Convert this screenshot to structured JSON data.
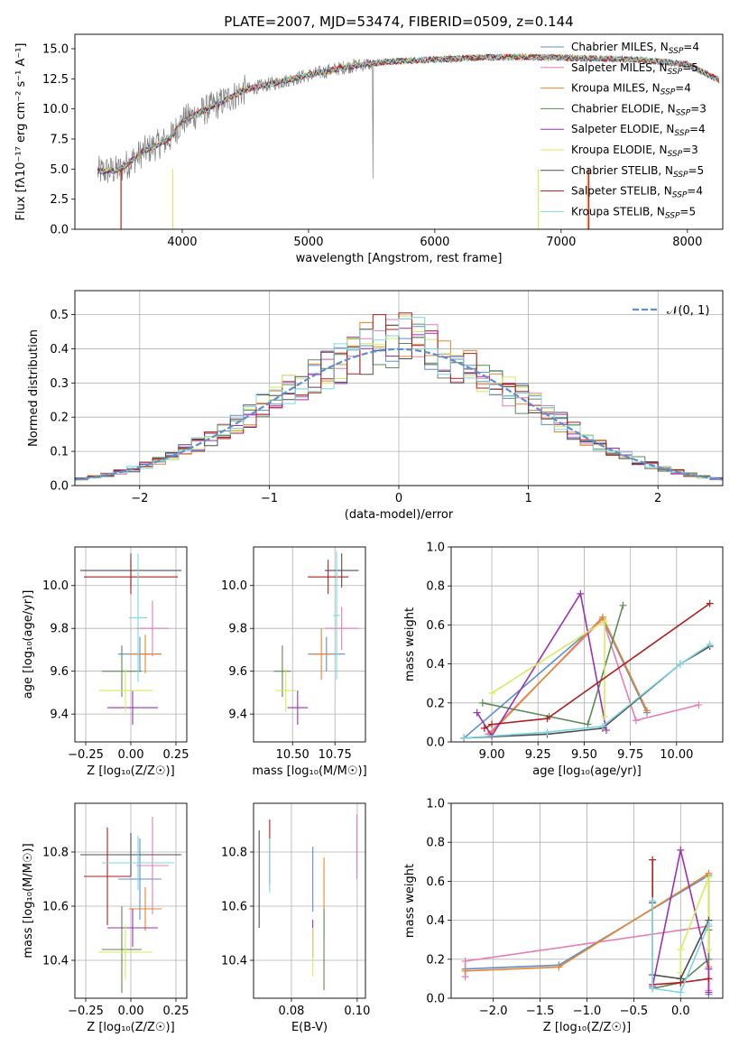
{
  "chart_data": [
    {
      "id": "spectrum",
      "type": "line",
      "title": "PLATE=2007, MJD=53474, FIBERID=0509, z=0.144",
      "xlabel": "wavelength [Angstrom, rest frame]",
      "ylabel": "Flux [fλ10⁻¹⁷ erg cm⁻² s⁻¹ A⁻¹]",
      "xlim": [
        3150,
        8280
      ],
      "ylim": [
        0,
        16.2
      ],
      "xticks": [
        4000,
        5000,
        6000,
        7000,
        8000
      ],
      "yticks": [
        0.0,
        2.5,
        5.0,
        7.5,
        10.0,
        12.5,
        15.0
      ],
      "grid": false,
      "legend_position": "top-right",
      "continuum": {
        "x": [
          3330,
          3500,
          3700,
          3900,
          4000,
          4300,
          4500,
          4800,
          5000,
          5300,
          5600,
          6000,
          6400,
          6800,
          7200,
          7600,
          8000,
          8250
        ],
        "y": [
          4.8,
          4.9,
          6.5,
          7.5,
          9.0,
          10.5,
          11.6,
          12.3,
          12.8,
          13.5,
          13.9,
          14.1,
          14.3,
          14.3,
          14.2,
          14.1,
          13.7,
          12.4
        ]
      },
      "series": [
        {
          "name": "Chabrier MILES, N<sub>SSP</sub>=4",
          "label_main": "Chabrier MILES, N",
          "label_sub": "SSP",
          "label_tail": "=4",
          "color": "#5b8fd0"
        },
        {
          "name": "Salpeter MILES, N<sub>SSP</sub>=5",
          "label_main": "Salpeter MILES, N",
          "label_sub": "SSP",
          "label_tail": "=5",
          "color": "#e47eb4"
        },
        {
          "name": "Kroupa MILES, N<sub>SSP</sub>=4",
          "label_main": "Kroupa MILES, N",
          "label_sub": "SSP",
          "label_tail": "=4",
          "color": "#e7862e"
        },
        {
          "name": "Chabrier ELODIE, N<sub>SSP</sub>=3",
          "label_main": "Chabrier ELODIE, N",
          "label_sub": "SSP",
          "label_tail": "=3",
          "color": "#5d8a56"
        },
        {
          "name": "Salpeter ELODIE, N<sub>SSP</sub>=4",
          "label_main": "Salpeter ELODIE, N",
          "label_sub": "SSP",
          "label_tail": "=4",
          "color": "#9b32b0"
        },
        {
          "name": "Kroupa ELODIE, N<sub>SSP</sub>=3",
          "label_main": "Kroupa ELODIE, N",
          "label_sub": "SSP",
          "label_tail": "=3",
          "color": "#d7ea5e"
        },
        {
          "name": "Chabrier STELIB, N<sub>SSP</sub>=5",
          "label_main": "Chabrier STELIB, N",
          "label_sub": "SSP",
          "label_tail": "=5",
          "color": "#4f4f4f"
        },
        {
          "name": "Salpeter STELIB, N<sub>SSP</sub>=4",
          "label_main": "Salpeter STELIB, N",
          "label_sub": "SSP",
          "label_tail": "=4",
          "color": "#b01e1e"
        },
        {
          "name": "Kroupa STELIB, N<sub>SSP</sub>=5",
          "label_main": "Kroupa STELIB, N",
          "label_sub": "SSP",
          "label_tail": "=5",
          "color": "#7fd6e0"
        }
      ],
      "data_color": "#808080"
    },
    {
      "id": "residuals",
      "type": "step",
      "xlabel": "(data-model)/error",
      "ylabel": "Normed distribution",
      "xlim": [
        -2.5,
        2.5
      ],
      "ylim": [
        0,
        0.57
      ],
      "xticks": [
        -2,
        -1,
        0,
        1,
        2
      ],
      "yticks": [
        0.0,
        0.1,
        0.2,
        0.3,
        0.4,
        0.5
      ],
      "grid": true,
      "legend_position": "top-right",
      "reference_label": "𝒩(0, 1)",
      "reference_color": "#5b8fd0",
      "bin_width": 0.1
    },
    {
      "id": "age-vs-Z",
      "type": "errorbar",
      "xlabel": "Z [log₁₀(Z/Z☉)]",
      "ylabel": "age  [log₁₀(age/yr)]",
      "xlim": [
        -0.31,
        0.31
      ],
      "ylim": [
        9.27,
        10.18
      ],
      "xticks": [
        -0.25,
        0.0,
        0.25
      ],
      "yticks": [
        9.4,
        9.6,
        9.8,
        10.0
      ],
      "grid": true,
      "points": [
        {
          "x": 0.05,
          "xerr": 0.12,
          "y": 9.68,
          "yerr": 0.08,
          "color": "#5b8fd0"
        },
        {
          "x": 0.12,
          "xerr": 0.09,
          "y": 9.8,
          "yerr": 0.13,
          "color": "#e47eb4"
        },
        {
          "x": 0.08,
          "xerr": 0.09,
          "y": 9.68,
          "yerr": 0.09,
          "color": "#e7862e"
        },
        {
          "x": -0.05,
          "xerr": 0.11,
          "y": 9.6,
          "yerr": 0.12,
          "color": "#5d8a56"
        },
        {
          "x": 0.01,
          "xerr": 0.14,
          "y": 9.43,
          "yerr": 0.08,
          "color": "#9b32b0"
        },
        {
          "x": -0.03,
          "xerr": 0.15,
          "y": 9.51,
          "yerr": 0.1,
          "color": "#d7ea5e"
        },
        {
          "x": 0.0,
          "xerr": 0.28,
          "y": 10.07,
          "yerr": 0.08,
          "color": "#4f4f4f"
        },
        {
          "x": 0.0,
          "xerr": 0.26,
          "y": 10.04,
          "yerr": 0.08,
          "color": "#b01e1e"
        },
        {
          "x": 0.04,
          "xerr": 0.05,
          "y": 9.85,
          "yerr": 0.3,
          "color": "#7fd6e0"
        }
      ]
    },
    {
      "id": "age-vs-mass",
      "type": "errorbar",
      "xlabel": "mass [log₁₀(M/M☉)]",
      "ylabel": "",
      "xlim": [
        10.27,
        10.93
      ],
      "ylim": [
        9.27,
        10.18
      ],
      "xticks": [
        10.25,
        10.5,
        10.75
      ],
      "yticks": [
        9.4,
        9.6,
        9.8,
        10.0
      ],
      "grid": true,
      "points": [
        {
          "x": 10.7,
          "xerr": 0.11,
          "y": 9.68,
          "yerr": 0.08,
          "color": "#5b8fd0"
        },
        {
          "x": 10.79,
          "xerr": 0.1,
          "y": 9.8,
          "yerr": 0.1,
          "color": "#e47eb4"
        },
        {
          "x": 10.67,
          "xerr": 0.06,
          "y": 9.68,
          "yerr": 0.12,
          "color": "#e7862e"
        },
        {
          "x": 10.44,
          "xerr": 0.05,
          "y": 9.6,
          "yerr": 0.12,
          "color": "#5d8a56"
        },
        {
          "x": 10.53,
          "xerr": 0.06,
          "y": 9.43,
          "yerr": 0.08,
          "color": "#9b32b0"
        },
        {
          "x": 10.46,
          "xerr": 0.06,
          "y": 9.51,
          "yerr": 0.1,
          "color": "#d7ea5e"
        },
        {
          "x": 10.79,
          "xerr": 0.1,
          "y": 10.07,
          "yerr": 0.08,
          "color": "#4f4f4f"
        },
        {
          "x": 10.71,
          "xerr": 0.12,
          "y": 10.04,
          "yerr": 0.08,
          "color": "#b01e1e"
        },
        {
          "x": 10.76,
          "xerr": 0.02,
          "y": 9.86,
          "yerr": 0.3,
          "color": "#7fd6e0"
        }
      ]
    },
    {
      "id": "weight-vs-age",
      "type": "line",
      "xlabel": "age  [log₁₀(age/yr)]",
      "ylabel": "mass weight",
      "xlim": [
        8.78,
        10.25
      ],
      "ylim": [
        0,
        1.0
      ],
      "xticks": [
        9.0,
        9.25,
        9.5,
        9.75,
        10.0
      ],
      "yticks": [
        0.0,
        0.2,
        0.4,
        0.6,
        0.8,
        1.0
      ],
      "grid": true,
      "series": [
        {
          "color": "#5b8fd0",
          "x": [
            8.85,
            9.6,
            9.84
          ],
          "y": [
            0.02,
            0.63,
            0.15
          ]
        },
        {
          "color": "#e47eb4",
          "x": [
            8.98,
            9.6,
            9.78,
            10.12
          ],
          "y": [
            0.04,
            0.63,
            0.11,
            0.19
          ]
        },
        {
          "color": "#e7862e",
          "x": [
            8.99,
            9.6,
            9.84
          ],
          "y": [
            0.04,
            0.64,
            0.16
          ]
        },
        {
          "color": "#5d8a56",
          "x": [
            8.95,
            9.31,
            9.52,
            9.71
          ],
          "y": [
            0.2,
            0.13,
            0.09,
            0.7
          ]
        },
        {
          "color": "#9b32b0",
          "x": [
            8.92,
            9.0,
            9.48,
            9.62
          ],
          "y": [
            0.15,
            0.03,
            0.76,
            0.06
          ]
        },
        {
          "color": "#d7ea5e",
          "x": [
            9.0,
            9.61,
            9.61
          ],
          "y": [
            0.25,
            0.62,
            0.13
          ]
        },
        {
          "color": "#4f4f4f",
          "x": [
            8.85,
            9.3,
            9.6,
            10.02,
            10.18
          ],
          "y": [
            0.02,
            0.04,
            0.07,
            0.4,
            0.49
          ]
        },
        {
          "color": "#b01e1e",
          "x": [
            8.96,
            9.0,
            9.3,
            10.18
          ],
          "y": [
            0.07,
            0.09,
            0.12,
            0.71
          ]
        },
        {
          "color": "#7fd6e0",
          "x": [
            8.85,
            9.3,
            9.6,
            10.02,
            10.18
          ],
          "y": [
            0.02,
            0.05,
            0.08,
            0.4,
            0.5
          ]
        }
      ]
    },
    {
      "id": "mass-vs-Z",
      "type": "errorbar",
      "xlabel": "Z [log₁₀(Z/Z☉)]",
      "ylabel": "mass [log₁₀(M/M☉)]",
      "xlim": [
        -0.31,
        0.31
      ],
      "ylim": [
        10.26,
        10.98
      ],
      "xticks": [
        -0.25,
        0.0,
        0.25
      ],
      "yticks": [
        10.4,
        10.6,
        10.8
      ],
      "grid": true,
      "points": [
        {
          "x": 0.05,
          "xerr": 0.12,
          "y": 10.7,
          "yerr": 0.15,
          "color": "#5b8fd0"
        },
        {
          "x": 0.12,
          "xerr": 0.09,
          "y": 10.75,
          "yerr": 0.18,
          "color": "#e47eb4"
        },
        {
          "x": 0.08,
          "xerr": 0.09,
          "y": 10.59,
          "yerr": 0.08,
          "color": "#e7862e"
        },
        {
          "x": -0.05,
          "xerr": 0.11,
          "y": 10.44,
          "yerr": 0.16,
          "color": "#5d8a56"
        },
        {
          "x": 0.01,
          "xerr": 0.14,
          "y": 10.52,
          "yerr": 0.07,
          "color": "#9b32b0"
        },
        {
          "x": -0.03,
          "xerr": 0.15,
          "y": 10.43,
          "yerr": 0.1,
          "color": "#d7ea5e"
        },
        {
          "x": 0.0,
          "xerr": 0.28,
          "y": 10.79,
          "yerr": 0.08,
          "color": "#4f4f4f"
        },
        {
          "x": -0.13,
          "xerr": 0.13,
          "y": 10.71,
          "yerr": 0.18,
          "color": "#b01e1e"
        },
        {
          "x": 0.04,
          "xerr": 0.2,
          "y": 10.76,
          "yerr": 0.1,
          "color": "#7fd6e0"
        }
      ]
    },
    {
      "id": "mass-vs-ebv",
      "type": "errorbar",
      "xlabel": "E(B-V)",
      "ylabel": "",
      "xlim": [
        0.0685,
        0.1025
      ],
      "ylim": [
        10.26,
        10.98
      ],
      "xticks": [
        0.08,
        0.1
      ],
      "yticks": [
        10.4,
        10.6,
        10.8
      ],
      "grid": true,
      "points": [
        {
          "x": 0.0865,
          "y": 10.7,
          "yerr": 0.12,
          "color": "#5b8fd0"
        },
        {
          "x": 0.0999,
          "y": 10.82,
          "yerr": 0.12,
          "color": "#e47eb4"
        },
        {
          "x": 0.0899,
          "y": 10.63,
          "yerr": 0.15,
          "color": "#e7862e"
        },
        {
          "x": 0.0899,
          "y": 10.44,
          "yerr": 0.15,
          "color": "#5d8a56"
        },
        {
          "x": 0.0865,
          "y": 10.48,
          "yerr": 0.07,
          "color": "#9b32b0"
        },
        {
          "x": 0.0865,
          "y": 10.43,
          "yerr": 0.09,
          "color": "#d7ea5e"
        },
        {
          "x": 0.0702,
          "y": 10.7,
          "yerr": 0.18,
          "color": "#4f4f4f"
        },
        {
          "x": 0.0734,
          "y": 10.8,
          "yerr": 0.12,
          "color": "#b01e1e"
        },
        {
          "x": 0.0734,
          "y": 10.75,
          "yerr": 0.1,
          "color": "#7fd6e0"
        }
      ]
    },
    {
      "id": "weight-vs-Z",
      "type": "line",
      "xlabel": "Z [log₁₀(Z/Z☉)]",
      "ylabel": "mass weight",
      "xlim": [
        -2.45,
        0.45
      ],
      "ylim": [
        0,
        1.0
      ],
      "xticks": [
        -2.0,
        -1.5,
        -1.0,
        -0.5,
        0.0
      ],
      "yticks": [
        0.0,
        0.2,
        0.4,
        0.6,
        0.8,
        1.0
      ],
      "grid": true,
      "series": [
        {
          "color": "#5b8fd0",
          "x": [
            -2.3,
            -1.3,
            0.3,
            0.3
          ],
          "y": [
            0.15,
            0.17,
            0.63,
            0.02
          ]
        },
        {
          "color": "#e47eb4",
          "x": [
            -2.3,
            -2.3,
            0.3,
            0.3
          ],
          "y": [
            0.11,
            0.19,
            0.37,
            0.04
          ]
        },
        {
          "color": "#e7862e",
          "x": [
            -2.3,
            -1.3,
            0.3,
            0.3
          ],
          "y": [
            0.14,
            0.16,
            0.64,
            0.16
          ]
        },
        {
          "color": "#5d8a56",
          "x": [
            -0.3,
            0.0,
            0.3,
            0.3
          ],
          "y": [
            0.05,
            0.08,
            0.2,
            0.35
          ]
        },
        {
          "color": "#9b32b0",
          "x": [
            -0.3,
            0.0,
            0.3,
            0.3
          ],
          "y": [
            0.06,
            0.76,
            0.15,
            0.03
          ]
        },
        {
          "color": "#d7ea5e",
          "x": [
            0.0,
            0.0,
            0.3,
            0.3
          ],
          "y": [
            0.13,
            0.25,
            0.62,
            0.25
          ]
        },
        {
          "color": "#4f4f4f",
          "x": [
            -0.3,
            -0.3,
            0.0,
            0.3
          ],
          "y": [
            0.49,
            0.12,
            0.1,
            0.4
          ]
        },
        {
          "color": "#b01e1e",
          "x": [
            -0.3,
            -0.3,
            0.0,
            0.3
          ],
          "y": [
            0.71,
            0.07,
            0.08,
            0.1
          ]
        },
        {
          "color": "#7fd6e0",
          "x": [
            -0.3,
            -0.3,
            0.0,
            0.3
          ],
          "y": [
            0.5,
            0.05,
            0.03,
            0.38
          ]
        }
      ]
    }
  ]
}
